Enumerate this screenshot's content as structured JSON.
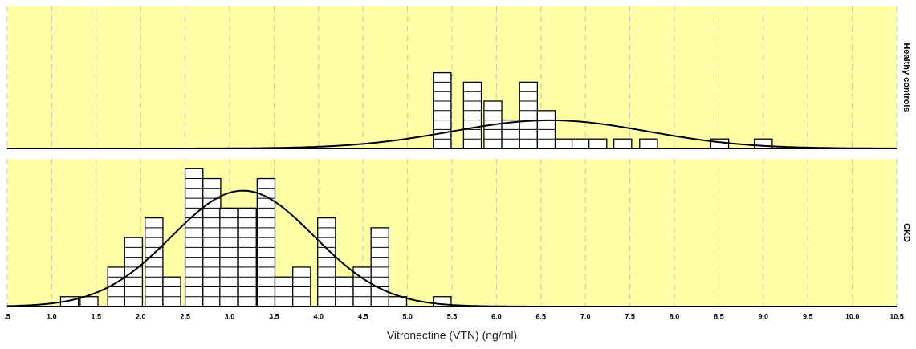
{
  "chart_data": {
    "type": "dot-histogram",
    "x_label": "Vitronectine (VTN) (ng/ml)",
    "xlim": [
      0.5,
      10.5
    ],
    "xticks": [
      {
        "value": 0.5,
        "label": ".5"
      },
      {
        "value": 1,
        "label": "1.0"
      },
      1.5,
      {
        "value": 2,
        "label": "2.0"
      },
      2.5,
      {
        "value": 3,
        "label": "3.0"
      },
      3.5,
      {
        "value": 4,
        "label": "4.0"
      },
      4.5,
      {
        "value": 5,
        "label": "5.0"
      },
      5.5,
      {
        "value": 6,
        "label": "6.0"
      },
      6.5,
      {
        "value": 7,
        "label": "7.0"
      },
      7.5,
      {
        "value": 8,
        "label": "8.0"
      },
      8.5,
      {
        "value": 9,
        "label": "9.0"
      },
      9.5,
      {
        "value": 10,
        "label": "10.0"
      },
      10.5
    ],
    "ylim": [
      0,
      15
    ],
    "bin_width": 0.2,
    "grid": true,
    "background": "#ffffa8",
    "color": "#ffffff",
    "panels": [
      {
        "name": "Healthy controls",
        "x": [
          5.39,
          5.73,
          5.96,
          6.16,
          6.36,
          6.56,
          6.76,
          6.95,
          7.14,
          7.42,
          7.71,
          8.51,
          9.0
        ],
        "values": [
          8,
          7,
          5,
          3,
          7,
          4,
          1,
          1,
          1,
          1,
          1,
          1,
          1
        ],
        "fit": {
          "mean": 6.6,
          "sd": 1.1
        }
      },
      {
        "name": "CKD",
        "x": [
          1.2,
          1.42,
          1.73,
          1.92,
          2.15,
          2.35,
          2.6,
          2.8,
          2.99,
          3.2,
          3.41,
          3.61,
          3.81,
          4.09,
          4.29,
          4.49,
          4.69,
          4.89,
          5.39
        ],
        "values": [
          1,
          1,
          4,
          7,
          9,
          3,
          14,
          13,
          10,
          10,
          13,
          3,
          4,
          9,
          3,
          4,
          8,
          1,
          1
        ],
        "fit": {
          "mean": 3.15,
          "sd": 0.8
        }
      }
    ]
  }
}
